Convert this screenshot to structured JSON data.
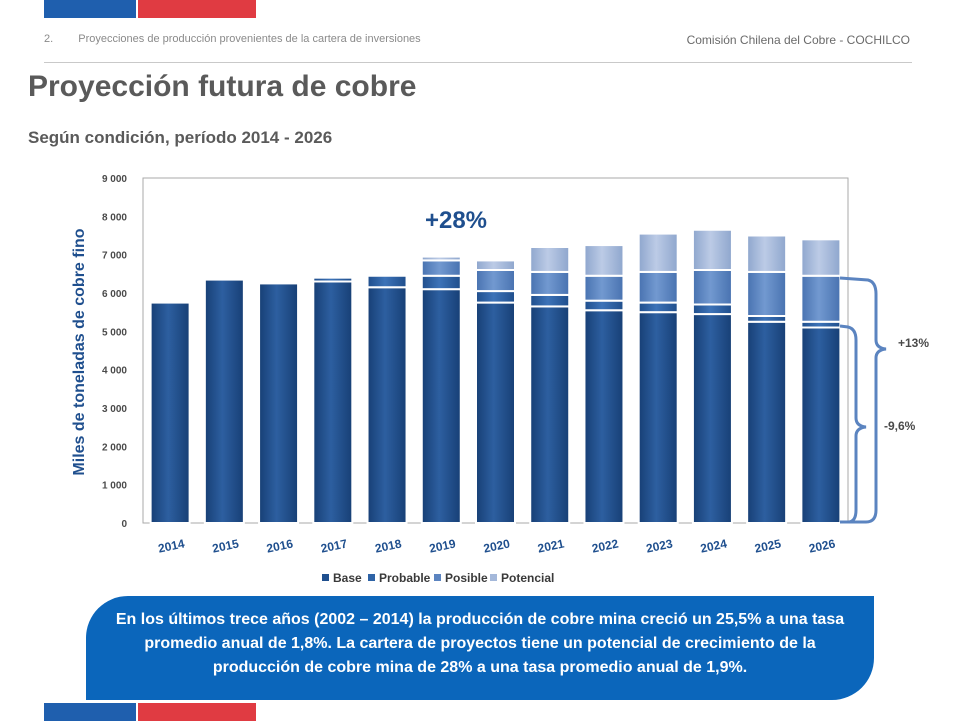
{
  "header": {
    "section_number": "2.",
    "section_title": "Proyecciones de producción provenientes de la cartera de inversiones",
    "organization": "Comisión Chilena del Cobre - COCHILCO"
  },
  "slide": {
    "title": "Proyección futura de cobre",
    "subtitle": "Según condición, período 2014 - 2026"
  },
  "chart_data": {
    "type": "bar",
    "stacked": true,
    "title": "",
    "xlabel": "",
    "ylabel": "Miles de toneladas de cobre fino",
    "ylim": [
      0,
      9000
    ],
    "yticks": [
      "0",
      "1 000",
      "2 000",
      "3 000",
      "4 000",
      "5 000",
      "6 000",
      "7 000",
      "8 000",
      "9 000"
    ],
    "grid": false,
    "legend_position": "bottom",
    "categories": [
      "2014",
      "2015",
      "2016",
      "2017",
      "2018",
      "2019",
      "2020",
      "2021",
      "2022",
      "2023",
      "2024",
      "2025",
      "2026"
    ],
    "series": [
      {
        "name": "Base",
        "color": "#1f4f8e",
        "values": [
          5750,
          6350,
          6250,
          6300,
          6150,
          6100,
          5750,
          5650,
          5550,
          5500,
          5450,
          5250,
          5100
        ]
      },
      {
        "name": "Probable",
        "color": "#2e63a6",
        "values": [
          0,
          0,
          0,
          100,
          300,
          350,
          300,
          300,
          250,
          250,
          250,
          150,
          150
        ]
      },
      {
        "name": "Posible",
        "color": "#5b84c0",
        "values": [
          0,
          0,
          0,
          0,
          0,
          400,
          550,
          600,
          650,
          800,
          900,
          1150,
          1200
        ]
      },
      {
        "name": "Potencial",
        "color": "#a4b8da",
        "values": [
          0,
          0,
          0,
          0,
          0,
          100,
          250,
          650,
          800,
          1000,
          1050,
          950,
          950
        ]
      }
    ],
    "annotations": {
      "growth_total": "+28%",
      "growth_upper": "+13%",
      "growth_lower": "-9,6%"
    }
  },
  "callout": {
    "text": "En los últimos trece años (2002 – 2014) la producción de cobre mina creció un 25,5% a una tasa promedio anual de 1,8%. La cartera de proyectos tiene un potencial de crecimiento de la producción de cobre mina de 28% a una tasa promedio anual de 1,9%."
  }
}
